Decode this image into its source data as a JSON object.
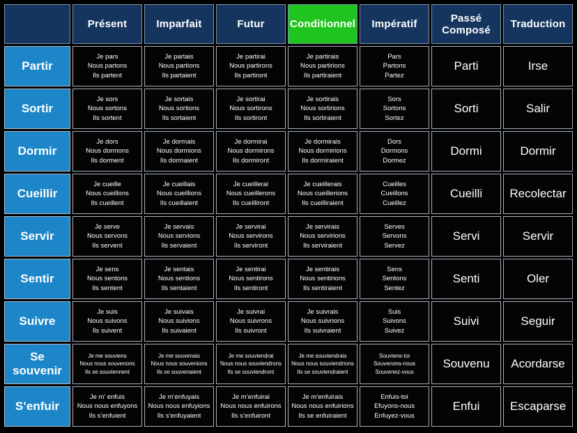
{
  "colors": {
    "page_background": "#000000",
    "header_background": "#15355f",
    "row_label_background": "#1d86c8",
    "cell_background": "#040404",
    "highlight_background": "#1fc41f",
    "grid_line": "#a9b2bd",
    "text": "#ffffff"
  },
  "table": {
    "columns": [
      {
        "label": "",
        "corner": true
      },
      {
        "label": "Présent"
      },
      {
        "label": "Imparfait"
      },
      {
        "label": "Futur"
      },
      {
        "label": "Conditionnel",
        "highlight": true
      },
      {
        "label": "Impératif"
      },
      {
        "label": "Passé Composé"
      },
      {
        "label": "Traduction"
      }
    ],
    "rows": [
      {
        "label": "Partir",
        "small_text": false,
        "cells": [
          "Je pars\nNous partons\nIls partent",
          "Je partais\nNous partions\nIls partaient",
          "Je partirai\nNous partirons\nIls partiront",
          "Je partirais\nNous partirions\nIls partiraient",
          "Pars\nPartons\nPartez",
          "Parti",
          "Irse"
        ]
      },
      {
        "label": "Sortir",
        "small_text": false,
        "cells": [
          "Je sors\nNous sortons\nIls sortent",
          "Je sortais\nNous sortions\nIls sortaient",
          "Je sortirai\nNous sortirons\nIls sortiront",
          "Je sortirais\nNous sortirions\nIls sortiraient",
          "Sors\nSortons\nSortez",
          "Sorti",
          "Salir"
        ]
      },
      {
        "label": "Dormir",
        "small_text": false,
        "cells": [
          "Je dors\nNous dormons\nIls dorment",
          "Je dormais\nNous dormions\nIls dormaient",
          "Je dormirai\nNous dormirons\nIls dormiront",
          "Je dormirais\nNous dormirions\nIls dormiraient",
          "Dors\nDormons\nDormez",
          "Dormi",
          "Dormir"
        ]
      },
      {
        "label": "Cueillir",
        "small_text": false,
        "cells": [
          "Je cueille\nNous cueillons\nIls cueillent",
          "Je cueillais\nNous cueillions\nIls cueillaient",
          "Je cueillerai\nNous cueillerons\nIls cueilliront",
          "Je cueillerais\nNous cueillerions\nIls cueilliraient",
          "Cueilles\nCueillons\nCueillez",
          "Cueilli",
          "Recolectar"
        ]
      },
      {
        "label": "Servir",
        "small_text": false,
        "cells": [
          "Je serve\nNous servons\nIls servent",
          "Je servais\nNous servions\nIls servaient",
          "Je servirai\nNous servirons\nIls serviront",
          "Je servirais\nNous servirions\nIls serviraient",
          "Serves\nServons\nServez",
          "Servi",
          "Servir"
        ]
      },
      {
        "label": "Sentir",
        "small_text": false,
        "cells": [
          "Je sens\nNous sentons\nIls sentent",
          "Je sentais\nNous sentions\nIls sentaient",
          "Je sentirai\nNous sentirons\nIls sentiront",
          "Je sentirais\nNous sentirions\nIls sentiraient",
          "Sens\nSentons\nSentez",
          "Senti",
          "Oler"
        ]
      },
      {
        "label": "Suivre",
        "small_text": false,
        "cells": [
          "Je suis\nNous suivons\nIls suivent",
          "Je suivais\nNous suivions\nIls suivaient",
          "Je suivrai\nNous suivrons\nIls suivront",
          "Je suivrais\nNous suivrions\nIls suivraient",
          "Suis\nSuivons\nSuivez",
          "Suivi",
          "Seguir"
        ]
      },
      {
        "label": "Se souvenir",
        "small_text": true,
        "cells": [
          "Je me souviens\nNous nous souvenons\nIls se souviennent",
          "Je me souvenais\nNous nous souvenions\nIls se souvenaient",
          "Je me souviendrai\nNous nous souviendrons\nIls se souviendront",
          "Je me souviendrais\nNous nous souviendrions\nIls se souviendraient",
          "Souviens-toi\nSouvenons-nous\nSouvenez-vous",
          "Souvenu",
          "Acordarse"
        ]
      },
      {
        "label": "S’enfuir",
        "small_text": false,
        "cells": [
          "Je m’ enfuis\nNous nous enfuyons\nIls s’enfuient",
          "Je m’enfuyais\nNous nous enfuyions\nIls s’enfuyaient",
          "Je m’enfuirai\nNous nous enfuirons\nIls s’enfuiront",
          "Je m’enfuirais\nNous nous enfuirions\nIls se enfuiraient",
          "Enfuis-toi\nEfuyons-nous\nEnfuyez-vous",
          "Enfui",
          "Escaparse"
        ]
      }
    ]
  }
}
